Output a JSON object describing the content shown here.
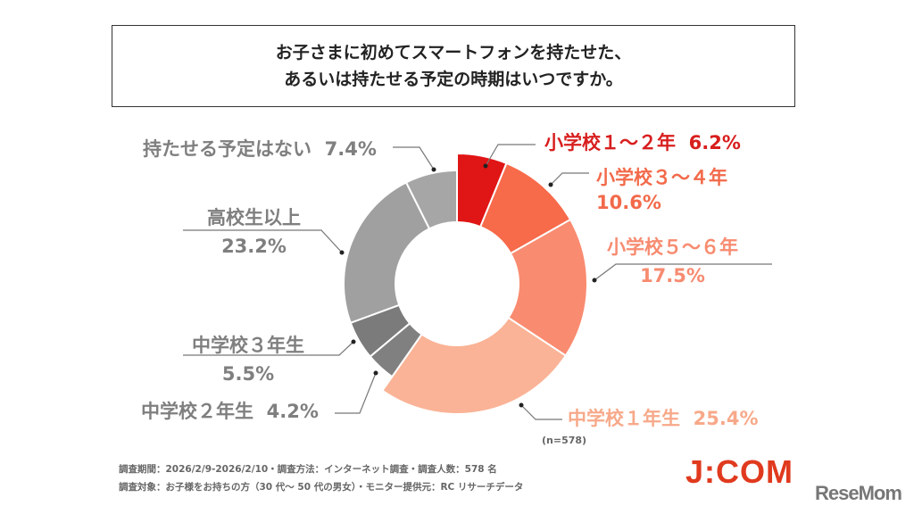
{
  "chart_data": {
    "type": "pie",
    "donut": true,
    "title_lines": [
      "お子さまに初めてスマートフォンを持たせた、",
      "あるいは持たせる予定の時期はいつですか。"
    ],
    "sample_note": "(n=578)",
    "slices": [
      {
        "label": "小学校１～２年",
        "value": 6.2,
        "value_text": "6.2%",
        "color": "#e01515"
      },
      {
        "label": "小学校３～４年",
        "value": 10.6,
        "value_text": "10.6%",
        "color": "#f76a4a"
      },
      {
        "label": "小学校５～６年",
        "value": 17.5,
        "value_text": "17.5%",
        "color": "#f98b70"
      },
      {
        "label": "中学校１年生",
        "value": 25.4,
        "value_text": "25.4%",
        "color": "#fab396"
      },
      {
        "label": "中学校２年生",
        "value": 4.2,
        "value_text": "4.2%",
        "color": "#808080"
      },
      {
        "label": "中学校３年生",
        "value": 5.5,
        "value_text": "5.5%",
        "color": "#7b7b7b"
      },
      {
        "label": "高校生以上",
        "value": 23.2,
        "value_text": "23.2%",
        "color": "#a0a0a0"
      },
      {
        "label": "持たせる予定はない",
        "value": 7.4,
        "value_text": "7.4%",
        "color": "#a6a6a6"
      }
    ],
    "label_colors": {
      "s0": "#d81e1e",
      "s1": "#f26a4a",
      "s2": "#f78b70",
      "s3": "#f7a98a",
      "gray": "#7f7f7f"
    }
  },
  "footer": {
    "line1": "調査期間：2026/2/9-2026/2/10・調査方法：インターネット調査・調査人数：578 名",
    "line2": "調査対象：お子様をお持ちの方（30 代～ 50 代の男女）・モニター提供元：RC リサーチデータ"
  },
  "logos": {
    "jcom": "J:COM",
    "resemom": "ReseMom"
  }
}
